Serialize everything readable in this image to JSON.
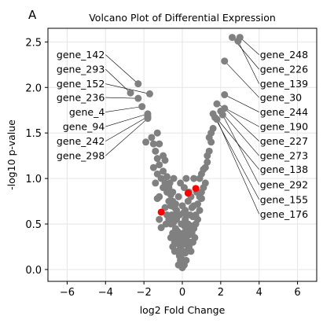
{
  "panel_label": "A",
  "chart_data": {
    "type": "scatter",
    "title": "Volcano Plot of Differential Expression",
    "xlabel": "log2 Fold Change",
    "ylabel": "-log10 p-value",
    "xlim": [
      -7,
      7
    ],
    "ylim": [
      -0.13,
      2.65
    ],
    "xticks": [
      -6,
      -4,
      -2,
      0,
      2,
      4,
      6
    ],
    "yticks": [
      0.0,
      0.5,
      1.0,
      1.5,
      2.0,
      2.5
    ],
    "xtick_labels": [
      "−6",
      "−4",
      "−2",
      "0",
      "2",
      "4",
      "6"
    ],
    "ytick_labels": [
      "0.0",
      "0.5",
      "1.0",
      "1.5",
      "2.0",
      "2.5"
    ],
    "grid": true,
    "colors": {
      "points": "#808080",
      "highlight": "#ff0000",
      "leader": "#000000",
      "grid": "#e6e6e6"
    },
    "highlighted_points": [
      {
        "x": -1.1,
        "y": 0.63
      },
      {
        "x": 0.3,
        "y": 0.84
      },
      {
        "x": 0.7,
        "y": 0.89
      }
    ],
    "labeled_genes": [
      {
        "name": "gene_142",
        "x": -2.3,
        "y": 2.04,
        "side": "left",
        "label_y": 2.36
      },
      {
        "name": "gene_293",
        "x": -2.7,
        "y": 1.94,
        "side": "left",
        "label_y": 2.2
      },
      {
        "name": "gene_152",
        "x": -1.7,
        "y": 1.93,
        "side": "left",
        "label_y": 2.04
      },
      {
        "name": "gene_236",
        "x": -2.3,
        "y": 1.88,
        "side": "left",
        "label_y": 1.89
      },
      {
        "name": "gene_4",
        "x": -2.1,
        "y": 1.79,
        "side": "left",
        "label_y": 1.73
      },
      {
        "name": "gene_94",
        "x": -1.8,
        "y": 1.71,
        "side": "left",
        "label_y": 1.57
      },
      {
        "name": "gene_242",
        "x": -1.8,
        "y": 1.68,
        "side": "left",
        "label_y": 1.41
      },
      {
        "name": "gene_298",
        "x": -1.8,
        "y": 1.66,
        "side": "left",
        "label_y": 1.25
      },
      {
        "name": "gene_248",
        "x": 3.0,
        "y": 2.55,
        "side": "right",
        "label_y": 2.36
      },
      {
        "name": "gene_226",
        "x": 2.6,
        "y": 2.55,
        "side": "right",
        "label_y": 2.2
      },
      {
        "name": "gene_139",
        "x": 2.9,
        "y": 2.51,
        "side": "right",
        "label_y": 2.04
      },
      {
        "name": "gene_30",
        "x": 2.2,
        "y": 2.29,
        "side": "right",
        "label_y": 1.89
      },
      {
        "name": "gene_244",
        "x": 2.2,
        "y": 1.92,
        "side": "right",
        "label_y": 1.73
      },
      {
        "name": "gene_190",
        "x": 1.8,
        "y": 1.82,
        "side": "right",
        "label_y": 1.57
      },
      {
        "name": "gene_227",
        "x": 2.2,
        "y": 1.77,
        "side": "right",
        "label_y": 1.41
      },
      {
        "name": "gene_273",
        "x": 2.0,
        "y": 1.74,
        "side": "right",
        "label_y": 1.25
      },
      {
        "name": "gene_138",
        "x": 1.6,
        "y": 1.71,
        "side": "right",
        "label_y": 1.1
      },
      {
        "name": "gene_292",
        "x": 2.1,
        "y": 1.7,
        "side": "right",
        "label_y": 0.93
      },
      {
        "name": "gene_155",
        "x": 1.7,
        "y": 1.67,
        "side": "right",
        "label_y": 0.77
      },
      {
        "name": "gene_176",
        "x": 1.8,
        "y": 1.65,
        "side": "right",
        "label_y": 0.61
      }
    ],
    "points": [
      [
        -2.3,
        2.04
      ],
      [
        -2.7,
        1.94
      ],
      [
        -1.7,
        1.93
      ],
      [
        -2.3,
        1.88
      ],
      [
        -2.1,
        1.79
      ],
      [
        -1.8,
        1.71
      ],
      [
        -1.8,
        1.68
      ],
      [
        -1.8,
        1.66
      ],
      [
        3.0,
        2.55
      ],
      [
        2.6,
        2.55
      ],
      [
        2.9,
        2.51
      ],
      [
        2.2,
        2.29
      ],
      [
        2.2,
        1.92
      ],
      [
        1.8,
        1.82
      ],
      [
        2.2,
        1.77
      ],
      [
        2.0,
        1.74
      ],
      [
        1.6,
        1.71
      ],
      [
        2.1,
        1.7
      ],
      [
        1.7,
        1.67
      ],
      [
        1.8,
        1.65
      ],
      [
        -1.9,
        1.4
      ],
      [
        -1.5,
        1.38
      ],
      [
        -1.4,
        1.3
      ],
      [
        -1.3,
        1.22
      ],
      [
        -1.2,
        1.15
      ],
      [
        -1.5,
        1.12
      ],
      [
        -1.0,
        1.08
      ],
      [
        -1.1,
        1.0
      ],
      [
        -0.9,
        0.95
      ],
      [
        -1.0,
        0.9
      ],
      [
        -0.8,
        0.85
      ],
      [
        -1.2,
        0.8
      ],
      [
        -0.7,
        0.75
      ],
      [
        -1.3,
        0.78
      ],
      [
        -0.6,
        0.7
      ],
      [
        -0.9,
        0.68
      ],
      [
        -1.2,
        0.55
      ],
      [
        -0.8,
        0.6
      ],
      [
        -1.1,
        0.46
      ],
      [
        -1.6,
        1.45
      ],
      [
        -1.3,
        1.5
      ],
      [
        -1.2,
        1.38
      ],
      [
        -0.9,
        1.2
      ],
      [
        -1.3,
        1.05
      ],
      [
        -1.0,
        1.25
      ],
      [
        -1.4,
        0.95
      ],
      [
        -0.8,
        1.02
      ],
      [
        -0.7,
        0.9
      ],
      [
        -0.6,
        0.82
      ],
      [
        -0.5,
        0.75
      ],
      [
        -0.4,
        0.68
      ],
      [
        -0.55,
        0.6
      ],
      [
        -0.45,
        0.52
      ],
      [
        -0.3,
        0.55
      ],
      [
        -0.35,
        0.45
      ],
      [
        -0.5,
        0.4
      ],
      [
        -0.25,
        0.38
      ],
      [
        -0.6,
        0.35
      ],
      [
        -0.4,
        0.3
      ],
      [
        -0.2,
        0.28
      ],
      [
        -0.3,
        0.2
      ],
      [
        -0.15,
        0.15
      ],
      [
        -0.1,
        0.1
      ],
      [
        -0.2,
        0.05
      ],
      [
        0.0,
        0.02
      ],
      [
        0.1,
        0.05
      ],
      [
        0.2,
        0.1
      ],
      [
        0.15,
        0.18
      ],
      [
        0.3,
        0.22
      ],
      [
        0.25,
        0.3
      ],
      [
        0.4,
        0.3
      ],
      [
        0.35,
        0.38
      ],
      [
        0.5,
        0.4
      ],
      [
        0.45,
        0.48
      ],
      [
        0.6,
        0.45
      ],
      [
        0.3,
        0.5
      ],
      [
        0.2,
        0.45
      ],
      [
        0.1,
        0.35
      ],
      [
        0.0,
        0.3
      ],
      [
        -0.1,
        0.25
      ],
      [
        0.05,
        0.4
      ],
      [
        -0.05,
        0.5
      ],
      [
        0.15,
        0.55
      ],
      [
        0.25,
        0.6
      ],
      [
        0.4,
        0.6
      ],
      [
        0.55,
        0.58
      ],
      [
        0.7,
        0.6
      ],
      [
        0.6,
        0.7
      ],
      [
        0.5,
        0.68
      ],
      [
        0.8,
        0.72
      ],
      [
        0.9,
        0.8
      ],
      [
        1.0,
        0.78
      ],
      [
        0.75,
        0.85
      ],
      [
        0.9,
        1.0
      ],
      [
        1.0,
        1.05
      ],
      [
        1.1,
        1.1
      ],
      [
        1.2,
        1.12
      ],
      [
        1.3,
        1.18
      ],
      [
        1.3,
        1.25
      ],
      [
        1.4,
        1.3
      ],
      [
        1.2,
        0.95
      ],
      [
        1.1,
        0.9
      ],
      [
        1.5,
        1.4
      ],
      [
        1.5,
        1.5
      ],
      [
        1.6,
        1.55
      ],
      [
        1.4,
        1.45
      ],
      [
        1.0,
        0.85
      ],
      [
        0.2,
        1.0
      ],
      [
        0.6,
        1.0
      ],
      [
        -0.1,
        0.95
      ],
      [
        0.1,
        0.9
      ],
      [
        0.3,
        0.75
      ],
      [
        -0.2,
        0.8
      ],
      [
        -0.3,
        0.65
      ],
      [
        0.0,
        0.7
      ],
      [
        -0.4,
        0.58
      ],
      [
        0.15,
        0.65
      ],
      [
        -0.15,
        0.6
      ],
      [
        0.05,
        0.62
      ],
      [
        -0.25,
        0.42
      ],
      [
        0.3,
        0.42
      ],
      [
        0.1,
        0.48
      ],
      [
        -0.05,
        0.38
      ],
      [
        0.2,
        0.35
      ],
      [
        -0.15,
        0.32
      ],
      [
        0.05,
        0.2
      ],
      [
        -0.05,
        0.12
      ],
      [
        0.1,
        0.28
      ],
      [
        -0.3,
        0.35
      ],
      [
        0.35,
        0.25
      ],
      [
        0.45,
        0.2
      ],
      [
        -0.4,
        0.2
      ],
      [
        -0.5,
        0.25
      ],
      [
        0.55,
        0.3
      ],
      [
        0.65,
        0.35
      ],
      [
        -0.6,
        0.5
      ],
      [
        0.7,
        0.5
      ],
      [
        -0.7,
        0.55
      ],
      [
        0.8,
        0.55
      ],
      [
        -0.85,
        0.5
      ],
      [
        0.9,
        0.65
      ],
      [
        -0.5,
        0.85
      ],
      [
        -0.35,
        0.72
      ],
      [
        0.45,
        0.8
      ],
      [
        0.35,
        0.85
      ],
      [
        -0.65,
        0.95
      ],
      [
        -0.45,
        1.0
      ]
    ]
  }
}
